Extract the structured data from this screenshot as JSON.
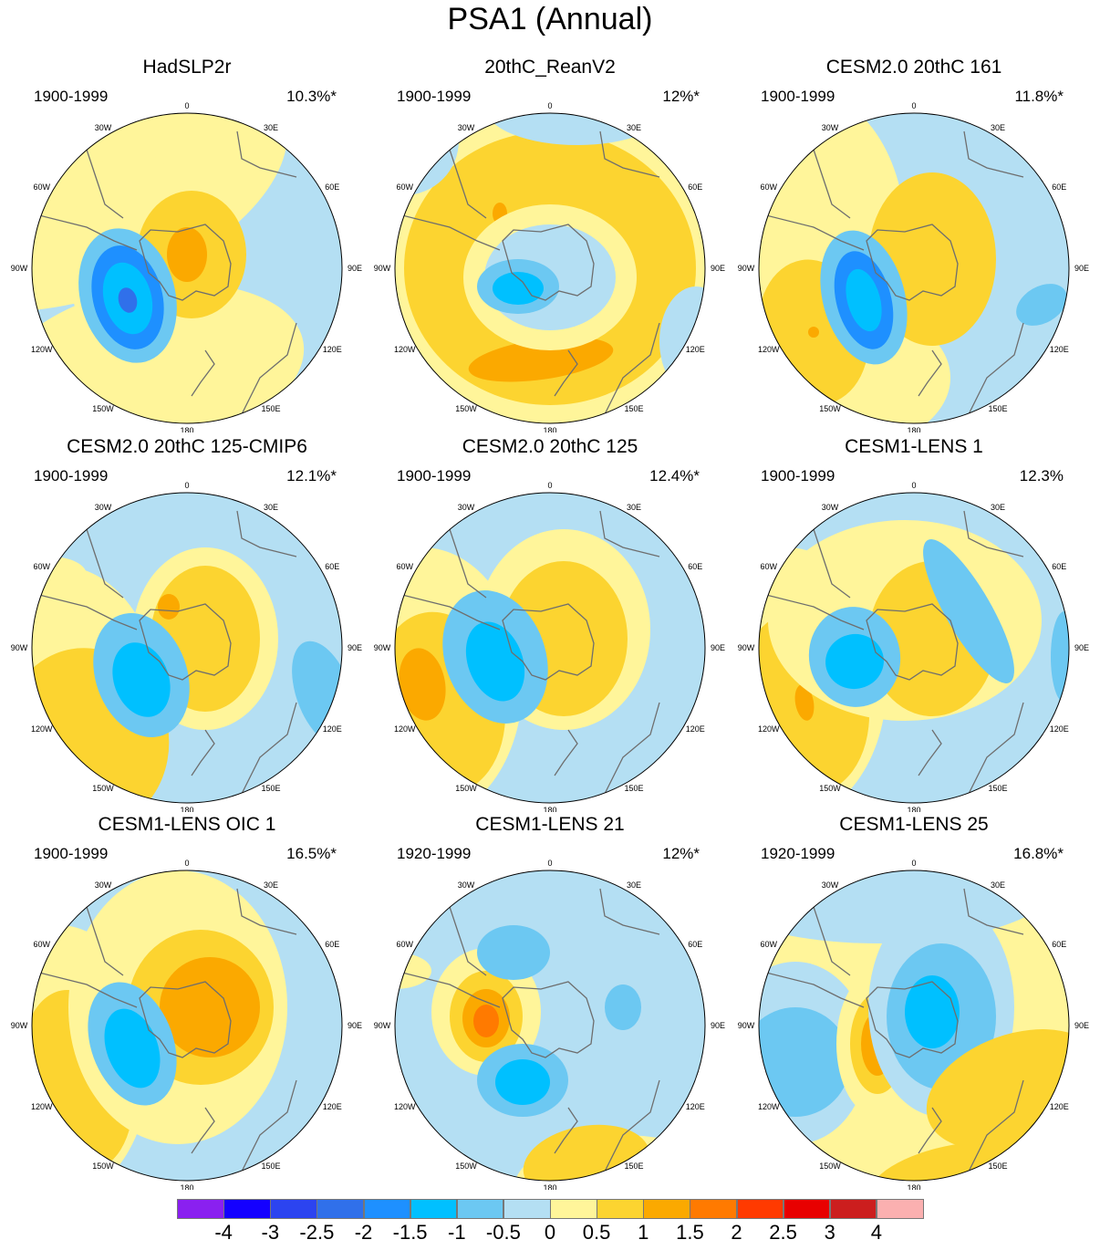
{
  "title": "PSA1 (Annual)",
  "lon_labels": [
    "0",
    "30E",
    "60E",
    "90E",
    "120E",
    "150E",
    "180",
    "150W",
    "120W",
    "90W",
    "60W",
    "30W"
  ],
  "colors": {
    "n4": "#8a20f0",
    "n3": "#1400ff",
    "n25": "#2c44f0",
    "n2": "#3070ea",
    "n15": "#1e90ff",
    "n1": "#00c0ff",
    "n05": "#6cc8f2",
    "n0": "#b4dff3",
    "p0": "#fff59a",
    "p05": "#fcd430",
    "p1": "#fba900",
    "p15": "#ff7a00",
    "p2": "#ff3a00",
    "p25": "#e80000",
    "p3": "#cc1e1e",
    "p4": "#fbb0b0",
    "coast": "#6e6e6e"
  },
  "panels": [
    {
      "name": "HadSLP2r",
      "period": "1900-1999",
      "pct": "10.3%*"
    },
    {
      "name": "20thC_ReanV2",
      "period": "1900-1999",
      "pct": "12%*"
    },
    {
      "name": "CESM2.0 20thC 161",
      "period": "1900-1999",
      "pct": "11.8%*"
    },
    {
      "name": "CESM2.0 20thC 125-CMIP6",
      "period": "1900-1999",
      "pct": "12.1%*"
    },
    {
      "name": "CESM2.0 20thC 125",
      "period": "1900-1999",
      "pct": "12.4%*"
    },
    {
      "name": "CESM1-LENS 1",
      "period": "1900-1999",
      "pct": "12.3%"
    },
    {
      "name": "CESM1-LENS OIC 1",
      "period": "1900-1999",
      "pct": "16.5%*"
    },
    {
      "name": "CESM1-LENS 21",
      "period": "1920-1999",
      "pct": "12%*"
    },
    {
      "name": "CESM1-LENS 25",
      "period": "1920-1999",
      "pct": "16.8%*"
    }
  ],
  "colorbar": {
    "colors": [
      "#8a20f0",
      "#1400ff",
      "#2c44f0",
      "#3070ea",
      "#1e90ff",
      "#00c0ff",
      "#6cc8f2",
      "#b4dff3",
      "#fff59a",
      "#fcd430",
      "#fba900",
      "#ff7a00",
      "#ff3a00",
      "#e80000",
      "#cc1e1e",
      "#fbb0b0"
    ],
    "ticks": [
      "-4",
      "-3",
      "-2.5",
      "-2",
      "-1.5",
      "-1",
      "-0.5",
      "0",
      "0.5",
      "1",
      "1.5",
      "2",
      "2.5",
      "3",
      "4"
    ]
  }
}
